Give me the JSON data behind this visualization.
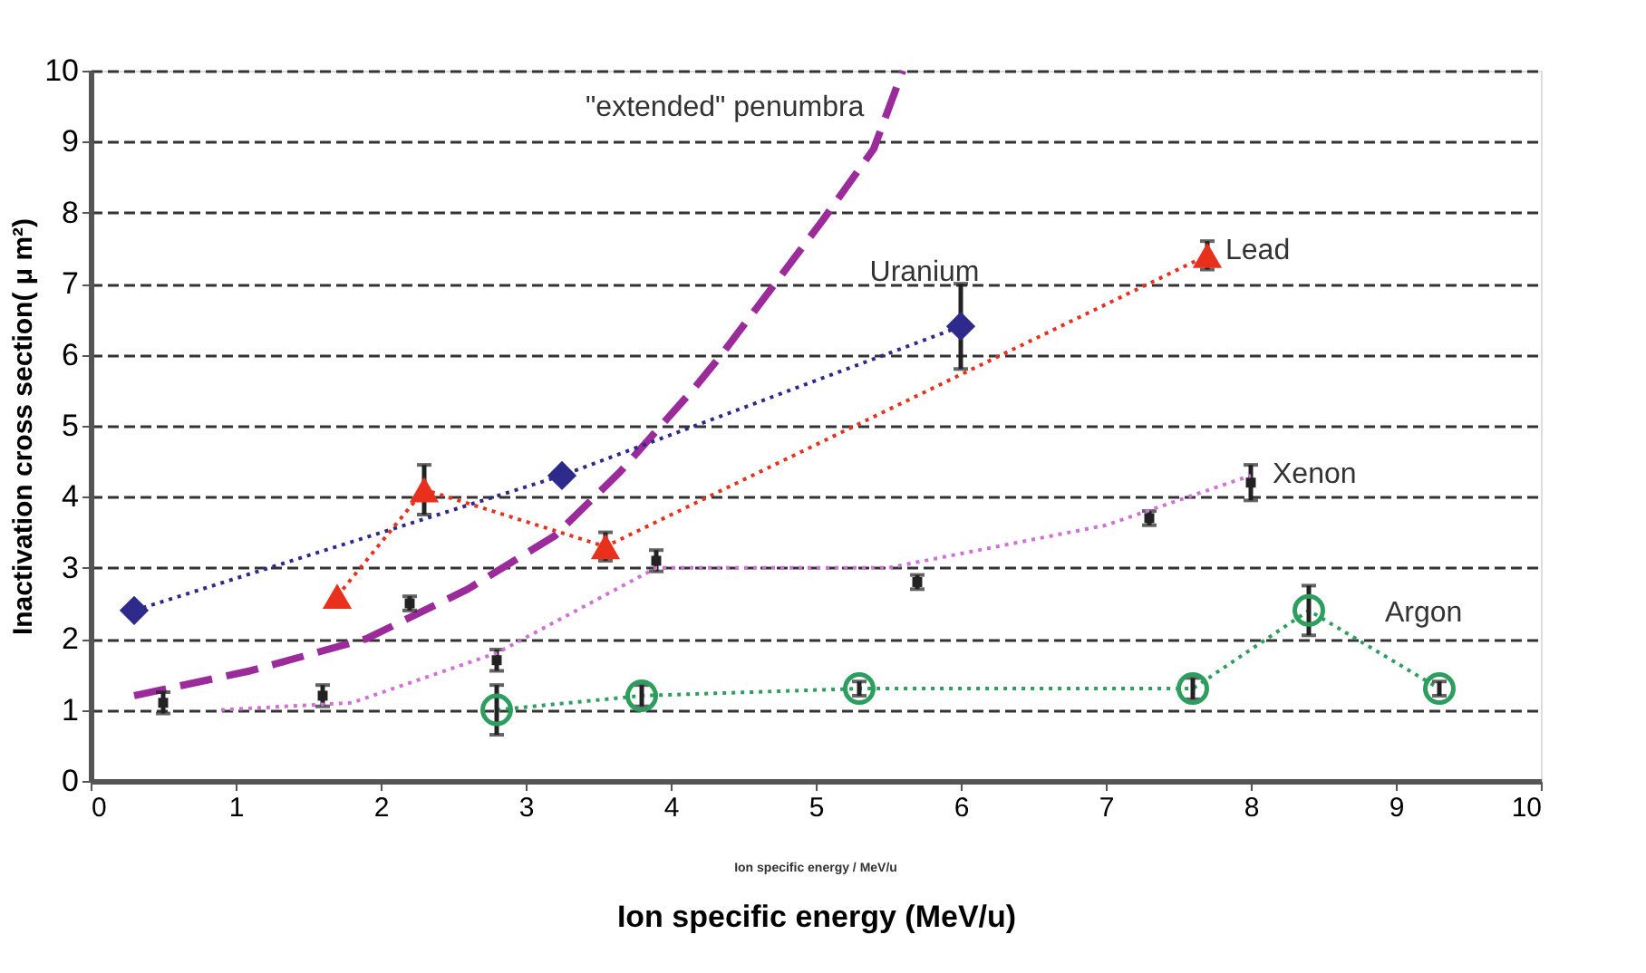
{
  "chart_data": {
    "type": "line",
    "xlabel": "Ion specific energy (MeV/u)",
    "ylabel": "Inactivation cross section( μ m²)",
    "xlim": [
      0,
      10
    ],
    "xticks": [
      0,
      1,
      2,
      3,
      4,
      5,
      6,
      7,
      8,
      9,
      10
    ],
    "ylim": [
      0,
      10
    ],
    "yticks": [
      0,
      1,
      2,
      3,
      4,
      5,
      6,
      7,
      8,
      9,
      10
    ],
    "grid": "y",
    "legend": false,
    "annotations": [
      "Ion specific energy / MeV/u"
    ],
    "series": [
      {
        "name": "\"extended\" penumbra",
        "color": "#9b2a9b",
        "line_style": "dashed",
        "marker": "none",
        "x": [
          0.3,
          1.1,
          1.9,
          2.6,
          3.2,
          3.65,
          4.15,
          4.35,
          5.05,
          5.4,
          5.6
        ],
        "values": [
          1.2,
          1.55,
          2.0,
          2.7,
          3.45,
          4.35,
          5.5,
          6.0,
          7.9,
          8.9,
          10
        ]
      },
      {
        "name": "Uranium",
        "color": "#2e2a8c",
        "line_style": "dotted",
        "marker": "diamond",
        "x": [
          0.3,
          3.25,
          6.0
        ],
        "values": [
          2.4,
          4.3,
          6.4
        ],
        "errors": [
          null,
          null,
          0.6
        ]
      },
      {
        "name": "Lead",
        "color": "#e8301c",
        "line_style": "dotted",
        "marker": "triangle",
        "x": [
          1.7,
          2.3,
          3.55,
          7.7
        ],
        "values": [
          2.6,
          4.1,
          3.3,
          7.4
        ],
        "errors": [
          null,
          0.35,
          0.2,
          0.2
        ]
      },
      {
        "name": "Xenon",
        "type": "scatter",
        "color": "#222222",
        "marker": "square",
        "x": [
          0.5,
          1.6,
          2.2,
          2.8,
          3.9,
          5.7,
          7.3,
          8.0
        ],
        "values": [
          1.1,
          1.2,
          2.5,
          1.7,
          3.1,
          2.8,
          3.7,
          4.2
        ],
        "errors": [
          0.15,
          0.15,
          0.1,
          0.15,
          0.15,
          0.1,
          0.1,
          0.25
        ]
      },
      {
        "color": "#d070d8",
        "line_style": "dotted",
        "marker": "none",
        "x": [
          0.9,
          1.8,
          2.8,
          3.9,
          5.5,
          7.0,
          8.0
        ],
        "values": [
          1.0,
          1.1,
          1.8,
          3.0,
          3.0,
          3.6,
          4.3
        ]
      },
      {
        "name": "Argon",
        "color": "#2e9e5e",
        "line_style": "dotted",
        "marker": "circle",
        "x": [
          2.8,
          3.8,
          5.3,
          7.6,
          8.4,
          9.3
        ],
        "values": [
          1.0,
          1.2,
          1.3,
          1.3,
          2.4,
          1.3
        ],
        "errors": [
          0.35,
          0.15,
          0.1,
          0.15,
          0.35,
          0.1
        ]
      }
    ]
  }
}
